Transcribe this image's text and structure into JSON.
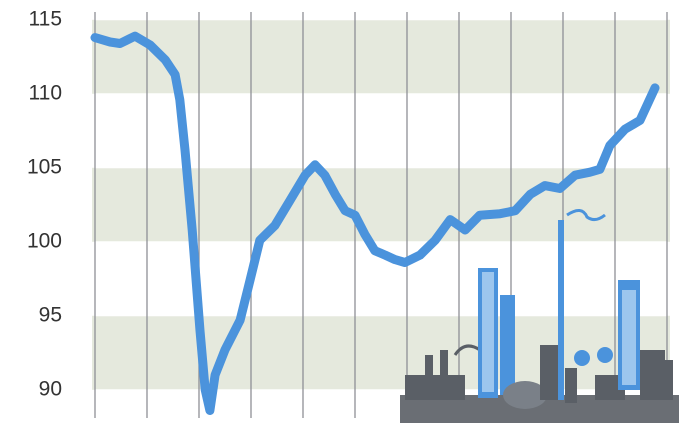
{
  "chart_data": {
    "type": "line",
    "x": [
      0,
      0.29,
      0.48,
      0.77,
      1.06,
      1.35,
      1.54,
      1.63,
      1.73,
      1.87,
      2.02,
      2.12,
      2.21,
      2.31,
      2.5,
      2.79,
      2.98,
      3.17,
      3.46,
      3.75,
      4.04,
      4.23,
      4.42,
      4.62,
      4.81,
      5,
      5.19,
      5.38,
      5.58,
      5.77,
      5.96,
      6.25,
      6.54,
      6.83,
      7.12,
      7.4,
      7.79,
      8.08,
      8.37,
      8.65,
      8.94,
      9.23,
      9.52,
      9.71,
      9.9,
      10.19,
      10.48,
      10.77
    ],
    "series": [
      {
        "color": "#4b93dc",
        "values": [
          113.8,
          113.5,
          113.4,
          113.9,
          113.3,
          112.3,
          111.3,
          109.6,
          106.2,
          100.8,
          94,
          90,
          88.6,
          91,
          92.7,
          94.7,
          97.4,
          100.1,
          101.1,
          102.8,
          104.5,
          105.2,
          104.5,
          103.2,
          102.1,
          101.8,
          100.5,
          99.4,
          99.1,
          98.8,
          98.6,
          99.1,
          100.1,
          101.5,
          100.8,
          101.8,
          101.9,
          102.1,
          103.2,
          103.8,
          103.6,
          104.5,
          104.7,
          104.9,
          106.5,
          107.6,
          108.2,
          110.4
        ]
      }
    ],
    "xlim": [
      0,
      11
    ],
    "xticks": [
      0,
      1,
      2,
      3,
      4,
      5,
      6,
      7,
      8,
      9,
      10,
      11
    ],
    "ylim": [
      88.5,
      116
    ],
    "yticks": [
      90,
      95,
      100,
      105,
      110,
      115
    ],
    "bands": true,
    "band_color": "#e5e9dd",
    "grid": true
  }
}
